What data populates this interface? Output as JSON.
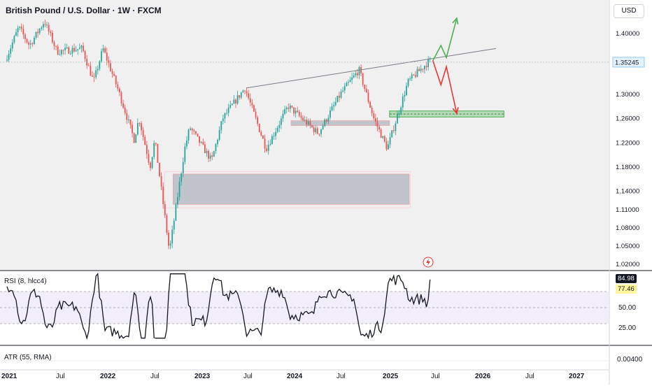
{
  "header": {
    "title": "British Pound / U.S. Dollar · 1W · FXCM",
    "currency": "USD"
  },
  "colors": {
    "up": "#26a69a",
    "down": "#ef5350",
    "bg_main": "#f0f0f0",
    "zone_gray": "#b2b5be",
    "zone_green": "#4caf50",
    "arrow_green": "#4caf50",
    "arrow_red": "#e53935",
    "rsi_band": "#7e57c2",
    "trendline": "#787b86"
  },
  "chart_data": [
    {
      "type": "candlestick",
      "title": "British Pound / U.S. Dollar · 1W · FXCM",
      "ylim": [
        1.01,
        1.455
      ],
      "y_ticks": [
        "1.40000",
        "1.35245",
        "1.30000",
        "1.26000",
        "1.22000",
        "1.18000",
        "1.14000",
        "1.11000",
        "1.08000",
        "1.05000",
        "1.02000"
      ],
      "x_ticks": [
        "2021",
        "Jul",
        "2022",
        "Jul",
        "2023",
        "Jul",
        "2024",
        "Jul",
        "2025",
        "Jul",
        "2026",
        "Jul",
        "2027"
      ],
      "last_price": "1.35245",
      "anchor_dates": [
        "2021-01-01",
        "2026-01-01"
      ],
      "swings": [
        [
          "2021-01-01",
          1.355
        ],
        [
          "2021-02-22",
          1.41
        ],
        [
          "2021-04-05",
          1.38
        ],
        [
          "2021-06-01",
          1.42
        ],
        [
          "2021-07-20",
          1.37
        ],
        [
          "2021-10-25",
          1.375
        ],
        [
          "2021-12-08",
          1.32
        ],
        [
          "2022-01-13",
          1.375
        ],
        [
          "2022-03-14",
          1.305
        ],
        [
          "2022-05-13",
          1.225
        ],
        [
          "2022-06-01",
          1.26
        ],
        [
          "2022-07-14",
          1.18
        ],
        [
          "2022-08-01",
          1.225
        ],
        [
          "2022-09-26",
          1.04
        ],
        [
          "2022-11-24",
          1.21
        ],
        [
          "2022-12-14",
          1.245
        ],
        [
          "2023-03-08",
          1.19
        ],
        [
          "2023-04-20",
          1.26
        ],
        [
          "2023-07-14",
          1.31
        ],
        [
          "2023-10-04",
          1.21
        ],
        [
          "2023-12-28",
          1.28
        ],
        [
          "2024-04-22",
          1.235
        ],
        [
          "2024-07-17",
          1.3
        ],
        [
          "2024-09-26",
          1.34
        ],
        [
          "2024-11-22",
          1.26
        ],
        [
          "2025-01-13",
          1.21
        ],
        [
          "2025-04-03",
          1.32
        ],
        [
          "2025-06-25",
          1.355
        ]
      ],
      "zones": [
        {
          "name": "demand zone",
          "color": "gray",
          "x": [
            "2022-10-03",
            "2025-04-01"
          ],
          "y": [
            1.118,
            1.168
          ]
        },
        {
          "name": "flip zone",
          "color": "gray",
          "x": [
            "2024-01-01",
            "2025-01-15"
          ],
          "y": [
            1.248,
            1.256
          ]
        },
        {
          "name": "support zone",
          "color": "green",
          "x": [
            "2025-01-15",
            "2026-04-01"
          ],
          "y": [
            1.262,
            1.272
          ]
        }
      ],
      "trendline": {
        "from": [
          "2023-07-14",
          1.31
        ],
        "to": [
          "2026-03-01",
          1.375
        ]
      },
      "scenarios": [
        {
          "direction": "up",
          "color": "green",
          "path": [
            [
              "2025-07-01",
              1.355
            ],
            [
              "2025-08-01",
              1.38
            ],
            [
              "2025-08-22",
              1.36
            ],
            [
              "2025-10-01",
              1.425
            ]
          ]
        },
        {
          "direction": "down",
          "color": "red",
          "path": [
            [
              "2025-07-01",
              1.355
            ],
            [
              "2025-08-01",
              1.315
            ],
            [
              "2025-08-22",
              1.345
            ],
            [
              "2025-10-01",
              1.268
            ]
          ]
        }
      ]
    },
    {
      "type": "line",
      "title": "RSI (8, hlcc4)",
      "ylim": [
        0,
        100
      ],
      "y_ticks": [
        "84.98",
        "77.46",
        "50.00",
        "25.00"
      ],
      "bands": [
        30,
        70
      ],
      "series": [
        {
          "values": [
            84.98
          ]
        }
      ]
    }
  ],
  "rsi": {
    "label": "RSI (8, hlcc4)",
    "value": "84.98",
    "value2": "77.46",
    "tick50": "50.00",
    "tick25": "25.00"
  },
  "atr": {
    "label": "ATR (55, RMA)",
    "value": "0.00400"
  }
}
